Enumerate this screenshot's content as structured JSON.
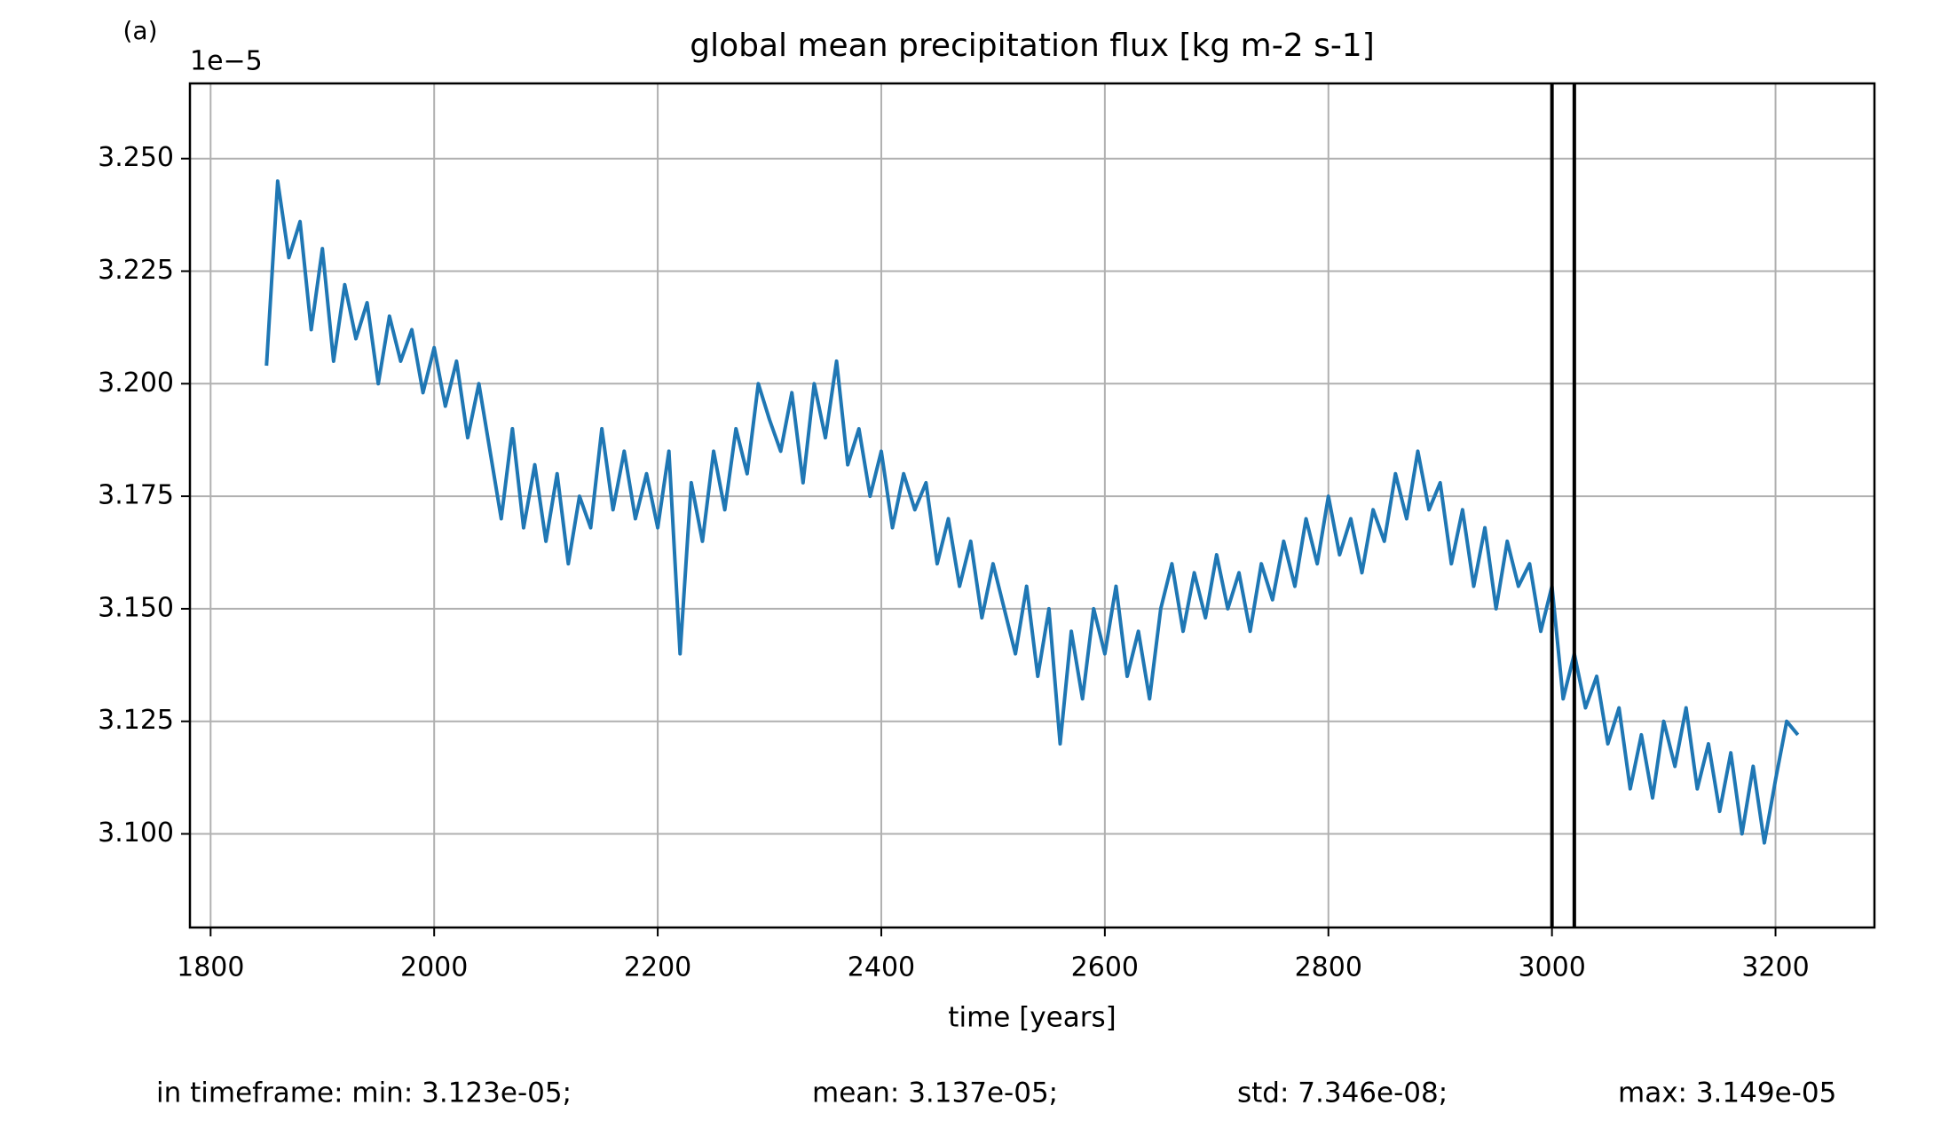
{
  "chart_data": {
    "type": "line",
    "panel_label": "(a)",
    "title": "global mean precipitation flux [kg m-2 s-1]",
    "y_offset_label": "1e−5",
    "xlabel": "time [years]",
    "footer": [
      "in timeframe: min: 3.123e-05;",
      "mean: 3.137e-05;",
      "std: 7.346e-08;",
      "max: 3.149e-05"
    ],
    "x": [
      1850,
      1860,
      1870,
      1880,
      1890,
      1900,
      1910,
      1920,
      1930,
      1940,
      1950,
      1960,
      1970,
      1980,
      1990,
      2000,
      2010,
      2020,
      2030,
      2040,
      2050,
      2060,
      2070,
      2080,
      2090,
      2100,
      2110,
      2120,
      2130,
      2140,
      2150,
      2160,
      2170,
      2180,
      2190,
      2200,
      2210,
      2220,
      2230,
      2240,
      2250,
      2260,
      2270,
      2280,
      2290,
      2300,
      2310,
      2320,
      2330,
      2340,
      2350,
      2360,
      2370,
      2380,
      2390,
      2400,
      2410,
      2420,
      2430,
      2440,
      2450,
      2460,
      2470,
      2480,
      2490,
      2500,
      2510,
      2520,
      2530,
      2540,
      2550,
      2560,
      2570,
      2580,
      2590,
      2600,
      2610,
      2620,
      2630,
      2640,
      2650,
      2660,
      2670,
      2680,
      2690,
      2700,
      2710,
      2720,
      2730,
      2740,
      2750,
      2760,
      2770,
      2780,
      2790,
      2800,
      2810,
      2820,
      2830,
      2840,
      2850,
      2860,
      2870,
      2880,
      2890,
      2900,
      2910,
      2920,
      2930,
      2940,
      2950,
      2960,
      2970,
      2980,
      2990,
      3000,
      3010,
      3020,
      3030,
      3040,
      3050,
      3060,
      3070,
      3080,
      3090,
      3100,
      3110,
      3120,
      3130,
      3140,
      3150,
      3160,
      3170,
      3180,
      3190,
      3200,
      3210,
      3220
    ],
    "series": [
      {
        "color": "#1f77b4",
        "values": [
          3.204,
          3.245,
          3.228,
          3.236,
          3.212,
          3.23,
          3.205,
          3.222,
          3.21,
          3.218,
          3.2,
          3.215,
          3.205,
          3.212,
          3.198,
          3.208,
          3.195,
          3.205,
          3.188,
          3.2,
          3.185,
          3.17,
          3.19,
          3.168,
          3.182,
          3.165,
          3.18,
          3.16,
          3.175,
          3.168,
          3.19,
          3.172,
          3.185,
          3.17,
          3.18,
          3.168,
          3.185,
          3.14,
          3.178,
          3.165,
          3.185,
          3.172,
          3.19,
          3.18,
          3.2,
          3.192,
          3.185,
          3.198,
          3.178,
          3.2,
          3.188,
          3.205,
          3.182,
          3.19,
          3.175,
          3.185,
          3.168,
          3.18,
          3.172,
          3.178,
          3.16,
          3.17,
          3.155,
          3.165,
          3.148,
          3.16,
          3.15,
          3.14,
          3.155,
          3.135,
          3.15,
          3.12,
          3.145,
          3.13,
          3.15,
          3.14,
          3.155,
          3.135,
          3.145,
          3.13,
          3.15,
          3.16,
          3.145,
          3.158,
          3.148,
          3.162,
          3.15,
          3.158,
          3.145,
          3.16,
          3.152,
          3.165,
          3.155,
          3.17,
          3.16,
          3.175,
          3.162,
          3.17,
          3.158,
          3.172,
          3.165,
          3.18,
          3.17,
          3.185,
          3.172,
          3.178,
          3.16,
          3.172,
          3.155,
          3.168,
          3.15,
          3.165,
          3.155,
          3.16,
          3.145,
          3.155,
          3.13,
          3.14,
          3.128,
          3.135,
          3.12,
          3.128,
          3.11,
          3.122,
          3.108,
          3.125,
          3.115,
          3.128,
          3.11,
          3.12,
          3.105,
          3.118,
          3.1,
          3.115,
          3.098,
          3.112,
          3.125,
          3.122
        ]
      }
    ],
    "vlines": [
      3000,
      3020
    ],
    "vline_color": "#000000",
    "xlim": [
      1781.5,
      3288.5
    ],
    "ylim": [
      3.0792,
      3.2667
    ],
    "xticks": [
      1800,
      2000,
      2200,
      2400,
      2600,
      2800,
      3000,
      3200
    ],
    "yticks": [
      {
        "value": 3.1,
        "label": "3.100"
      },
      {
        "value": 3.125,
        "label": "3.125"
      },
      {
        "value": 3.15,
        "label": "3.150"
      },
      {
        "value": 3.175,
        "label": "3.175"
      },
      {
        "value": 3.2,
        "label": "3.200"
      },
      {
        "value": 3.225,
        "label": "3.225"
      },
      {
        "value": 3.25,
        "label": "3.250"
      }
    ],
    "grid": true
  }
}
